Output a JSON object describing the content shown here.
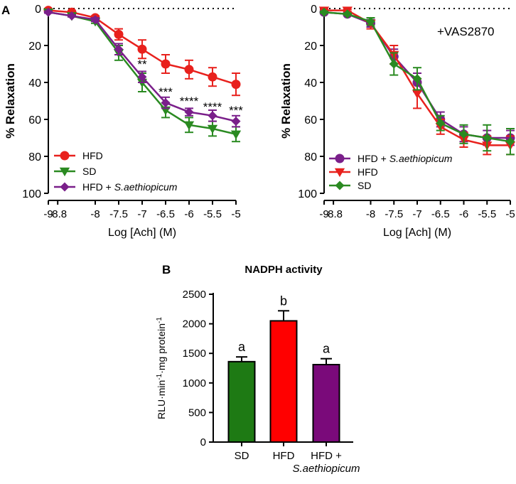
{
  "figure": {
    "panel_a_label": "A",
    "panel_b_label": "B"
  },
  "chart_data": [
    {
      "id": "a-left",
      "type": "line",
      "title": "",
      "annotation": "",
      "xlabel": "Log [Ach] (M)",
      "ylabel": "% Relaxation",
      "xlim": [
        -9,
        -5
      ],
      "ylim": [
        0,
        100
      ],
      "y_inverted": true,
      "x_ticks": [
        -9,
        -8.8,
        -8,
        -7.5,
        -7,
        -6.5,
        -6,
        -5.5,
        -5
      ],
      "x_tick_labels": [
        "-9",
        "-8.8",
        "-8",
        "-7.5",
        "-7",
        "-6.5",
        "-6",
        "-5.5",
        "-5"
      ],
      "y_ticks": [
        0,
        20,
        40,
        60,
        80,
        100
      ],
      "y_tick_labels": [
        "0",
        "20",
        "40",
        "60",
        "80",
        "100"
      ],
      "baseline": "dotted line at 0",
      "legend_position": "bottom-left",
      "x": [
        -9,
        -8.5,
        -8,
        -7.5,
        -7,
        -6.5,
        -6,
        -5.5,
        -5
      ],
      "series": [
        {
          "name": "HFD",
          "legend_label": "HFD",
          "legend_italic": "",
          "color": "#e8211d",
          "marker": "circle",
          "values": [
            1,
            2,
            5,
            14,
            22,
            30,
            33,
            37,
            41
          ],
          "errors": [
            0.5,
            0.5,
            1,
            3,
            5,
            5,
            5,
            5,
            6
          ]
        },
        {
          "name": "SD",
          "legend_label": "SD",
          "legend_italic": "",
          "color": "#2a8a21",
          "marker": "triangle-down",
          "values": [
            2,
            4,
            7,
            24,
            40,
            55,
            63,
            65,
            68
          ],
          "errors": [
            0.5,
            0.5,
            1,
            4,
            5,
            4,
            4,
            4,
            4
          ]
        },
        {
          "name": "HFD + S.aethiopicum",
          "legend_label": "HFD + ",
          "legend_italic": "S.aethiopicum",
          "color": "#7a1f8a",
          "marker": "diamond",
          "values": [
            2,
            4,
            6,
            22,
            37,
            51,
            56,
            58,
            61
          ],
          "errors": [
            0.5,
            0.5,
            1,
            3,
            3,
            3,
            2,
            3,
            3
          ]
        }
      ],
      "significance": [
        {
          "x": -7,
          "label": "**",
          "y": 30
        },
        {
          "x": -6.5,
          "label": "***",
          "y": 45
        },
        {
          "x": -6,
          "label": "****",
          "y": 50
        },
        {
          "x": -5.5,
          "label": "****",
          "y": 53
        },
        {
          "x": -5,
          "label": "***",
          "y": 55
        }
      ]
    },
    {
      "id": "a-right",
      "type": "line",
      "title": "",
      "annotation": "+VAS2870",
      "xlabel": "Log [Ach] (M)",
      "ylabel": "% Relaxation",
      "xlim": [
        -9,
        -5
      ],
      "ylim": [
        0,
        100
      ],
      "y_inverted": true,
      "x_ticks": [
        -9,
        -8.8,
        -8,
        -7.5,
        -7,
        -6.5,
        -6,
        -5.5,
        -5
      ],
      "x_tick_labels": [
        "-9",
        "-8.8",
        "-8",
        "-7.5",
        "-7",
        "-6.5",
        "-6",
        "-5.5",
        "-5"
      ],
      "y_ticks": [
        0,
        20,
        40,
        60,
        80,
        100
      ],
      "y_tick_labels": [
        "0",
        "20",
        "40",
        "60",
        "80",
        "100"
      ],
      "baseline": "dotted line at 0",
      "legend_position": "bottom-left",
      "x": [
        -9,
        -8.5,
        -8,
        -7.5,
        -7,
        -6.5,
        -6,
        -5.5,
        -5
      ],
      "series": [
        {
          "name": "HFD + S.aethiopicum",
          "legend_label": "HFD + ",
          "legend_italic": "S.aethiopicum",
          "color": "#7a1f8a",
          "marker": "circle",
          "values": [
            2,
            3,
            8,
            26,
            40,
            60,
            68,
            70,
            70
          ],
          "errors": [
            0.5,
            0.5,
            2,
            4,
            5,
            4,
            4,
            4,
            4
          ]
        },
        {
          "name": "HFD",
          "legend_label": "HFD",
          "legend_italic": "",
          "color": "#e8211d",
          "marker": "triangle-down",
          "values": [
            1,
            1,
            8,
            25,
            46,
            64,
            71,
            74,
            74
          ],
          "errors": [
            0.5,
            0.5,
            3,
            5,
            8,
            4,
            4,
            5,
            5
          ]
        },
        {
          "name": "SD",
          "legend_label": "SD",
          "legend_italic": "",
          "color": "#2a8a21",
          "marker": "diamond",
          "values": [
            2,
            3,
            7,
            30,
            38,
            62,
            68,
            70,
            72
          ],
          "errors": [
            0.5,
            0.5,
            2,
            6,
            6,
            4,
            5,
            7,
            7
          ]
        }
      ],
      "significance": []
    },
    {
      "id": "b",
      "type": "bar",
      "title": "NADPH activity",
      "ylabel_base": "RLU·min",
      "ylabel_mid": "·mg protein",
      "ylabel_sup": "-1",
      "ylim": [
        0,
        2500
      ],
      "y_ticks": [
        0,
        500,
        1000,
        1500,
        2000,
        2500
      ],
      "y_tick_labels": [
        "0",
        "500",
        "1000",
        "1500",
        "2000",
        "2500"
      ],
      "categories": [
        "SD",
        "HFD",
        "HFD + S.aethiopicum"
      ],
      "category_lines": [
        {
          "line1": "SD",
          "line2": ""
        },
        {
          "line1": "HFD",
          "line2": ""
        },
        {
          "line1": "HFD +",
          "line2": "S.aethiopicum"
        }
      ],
      "values": [
        1360,
        2050,
        1310
      ],
      "errors": [
        80,
        170,
        100
      ],
      "colors": [
        "#1e7a14",
        "#ff0000",
        "#7a0a7a"
      ],
      "letters": [
        "a",
        "b",
        "a"
      ]
    }
  ]
}
